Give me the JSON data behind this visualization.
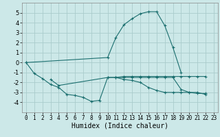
{
  "title": "",
  "xlabel": "Humidex (Indice chaleur)",
  "bg_color": "#cce8e8",
  "grid_color": "#aacccc",
  "line_color": "#1a6e6e",
  "xlim": [
    -0.5,
    23.5
  ],
  "ylim": [
    -5,
    6
  ],
  "xticks": [
    0,
    1,
    2,
    3,
    4,
    5,
    6,
    7,
    8,
    9,
    10,
    11,
    12,
    13,
    14,
    15,
    16,
    17,
    18,
    19,
    20,
    21,
    22,
    23
  ],
  "yticks": [
    -4,
    -3,
    -2,
    -1,
    0,
    1,
    2,
    3,
    4,
    5
  ],
  "series": [
    {
      "x": [
        0,
        1,
        2,
        3,
        4,
        5,
        6,
        7,
        8,
        9,
        10,
        11,
        12,
        13,
        14,
        15,
        16,
        17,
        18,
        19,
        20,
        21,
        22
      ],
      "y": [
        0,
        -1.1,
        -1.6,
        -2.2,
        -2.5,
        -3.2,
        -3.3,
        -3.5,
        -3.9,
        -3.8,
        -1.5,
        -1.5,
        -1.4,
        -1.4,
        -1.4,
        -1.4,
        -1.4,
        -1.4,
        -1.4,
        -1.4,
        -1.4,
        -1.4,
        -1.4
      ]
    },
    {
      "x": [
        3,
        4,
        10,
        11,
        12,
        13,
        14,
        15,
        16,
        17,
        18,
        19,
        20,
        21,
        22
      ],
      "y": [
        -1.7,
        -2.3,
        -1.5,
        -1.5,
        -1.5,
        -1.5,
        -1.5,
        -1.5,
        -1.5,
        -1.5,
        -1.5,
        -2.7,
        -3.0,
        -3.1,
        -3.1
      ]
    },
    {
      "x": [
        11,
        12,
        13,
        14,
        15,
        16,
        17,
        18,
        19,
        20,
        21,
        22
      ],
      "y": [
        -1.5,
        -1.7,
        -1.8,
        -2.0,
        -2.5,
        -2.8,
        -3.0,
        -3.0,
        -3.0,
        -3.0,
        -3.0,
        -3.2
      ]
    },
    {
      "x": [
        0,
        10,
        11,
        12,
        13,
        14,
        15,
        16,
        17,
        18,
        19
      ],
      "y": [
        0,
        0.5,
        2.5,
        3.8,
        4.4,
        4.9,
        5.1,
        5.1,
        3.7,
        1.5,
        -1.0
      ]
    }
  ]
}
